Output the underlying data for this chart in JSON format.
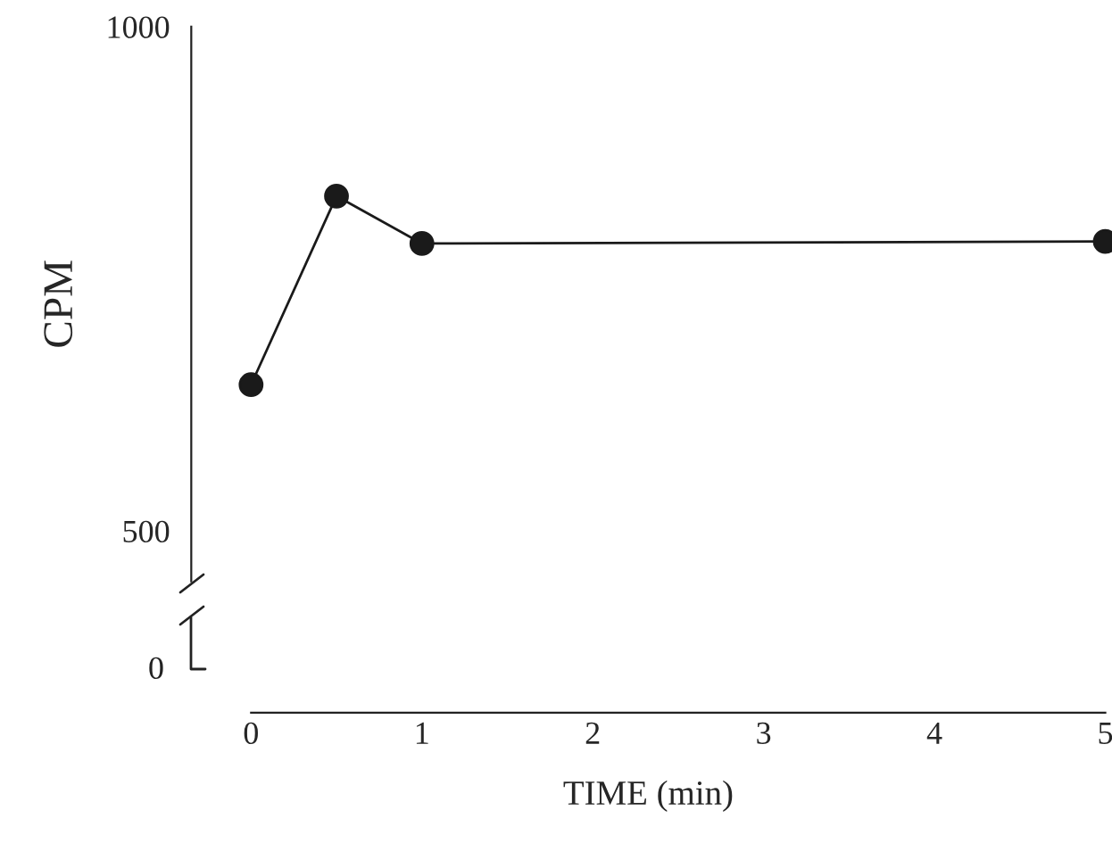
{
  "chart_data": {
    "type": "line",
    "x": [
      0,
      0.5,
      1,
      5
    ],
    "series": [
      {
        "color": "#1a1a1a",
        "values": [
          645,
          832,
          785,
          787
        ]
      }
    ],
    "ylabel": "CPM",
    "xlabel": "TIME (min)",
    "xlim": [
      -0.35,
      5
    ],
    "xticks": [
      0,
      1,
      2,
      3,
      4,
      5
    ],
    "ylim": [
      450,
      1000
    ],
    "yticks": [
      500,
      1000
    ],
    "annotations": [
      "0"
    ],
    "marker": "circle",
    "line_style": "solid",
    "grid": false,
    "legend": false
  }
}
